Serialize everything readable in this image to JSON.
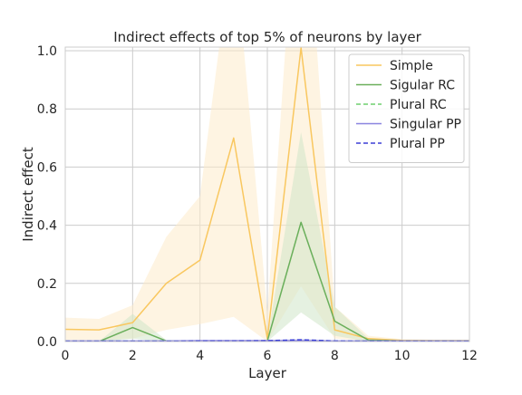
{
  "chart_data": {
    "type": "line",
    "title": "Indirect effects of top 5% of neurons by layer",
    "xlabel": "Layer",
    "ylabel": "Indirect effect",
    "xlim": [
      0,
      12
    ],
    "ylim": [
      0,
      1.0
    ],
    "xticks": [
      0,
      2,
      4,
      6,
      8,
      10,
      12
    ],
    "yticks": [
      0.0,
      0.2,
      0.4,
      0.6,
      0.8,
      1.0
    ],
    "xtick_labels": [
      "0",
      "2",
      "4",
      "6",
      "8",
      "10",
      "12"
    ],
    "ytick_labels": [
      "0.0",
      "0.2",
      "0.4",
      "0.6",
      "0.8",
      "1.0"
    ],
    "grid": true,
    "legend_position": "top-right",
    "x": [
      0,
      1,
      2,
      3,
      4,
      5,
      6,
      7,
      8,
      9,
      10,
      11,
      12
    ],
    "series": [
      {
        "name": "Simple",
        "color": "#f9c75f",
        "band_color": "#fdebcb",
        "dash": "solid",
        "values": [
          0.042,
          0.04,
          0.065,
          0.2,
          0.28,
          0.7,
          0.01,
          1.01,
          0.04,
          0.01,
          0.004,
          0.003,
          0.003
        ],
        "lower": [
          0.005,
          0.005,
          0.01,
          0.04,
          0.06,
          0.085,
          0.0,
          0.19,
          0.01,
          0.003,
          0.001,
          0.001,
          0.001
        ],
        "upper": [
          0.082,
          0.078,
          0.125,
          0.36,
          0.5,
          1.4,
          0.1,
          1.8,
          0.12,
          0.02,
          0.008,
          0.006,
          0.006
        ]
      },
      {
        "name": "Sigular RC",
        "color": "#6aaf5b",
        "band_color": "#cfe6c8",
        "dash": "solid",
        "values": [
          0.0,
          0.0,
          0.048,
          0.002,
          0.002,
          0.002,
          0.002,
          0.41,
          0.07,
          0.005,
          0.002,
          0.002,
          0.002
        ],
        "lower": [
          0.0,
          0.0,
          0.01,
          0.0,
          0.0,
          0.0,
          0.0,
          0.1,
          0.02,
          0.0,
          0.0,
          0.0,
          0.0
        ],
        "upper": [
          0.0,
          0.0,
          0.095,
          0.005,
          0.005,
          0.005,
          0.005,
          0.72,
          0.12,
          0.01,
          0.005,
          0.005,
          0.005
        ]
      },
      {
        "name": "Plural RC",
        "color": "#6fcf6f",
        "band_color": "#cfe6c8",
        "dash": "dashed",
        "values": [
          0.002,
          0.002,
          0.002,
          0.002,
          0.002,
          0.002,
          0.002,
          0.004,
          0.002,
          0.002,
          0.002,
          0.002,
          0.002
        ],
        "lower": [
          0.0,
          0.0,
          0.0,
          0.0,
          0.0,
          0.0,
          0.0,
          0.0,
          0.0,
          0.0,
          0.0,
          0.0,
          0.0
        ],
        "upper": [
          0.004,
          0.004,
          0.004,
          0.004,
          0.004,
          0.004,
          0.004,
          0.008,
          0.004,
          0.004,
          0.004,
          0.004,
          0.004
        ]
      },
      {
        "name": "Singular PP",
        "color": "#8a84e0",
        "band_color": "#d6d4f4",
        "dash": "solid",
        "values": [
          0.002,
          0.002,
          0.002,
          0.002,
          0.003,
          0.003,
          0.003,
          0.003,
          0.002,
          0.002,
          0.002,
          0.002,
          0.002
        ],
        "lower": [
          0.0,
          0.0,
          0.0,
          0.0,
          0.0,
          0.0,
          0.0,
          0.0,
          0.0,
          0.0,
          0.0,
          0.0,
          0.0
        ],
        "upper": [
          0.004,
          0.004,
          0.004,
          0.004,
          0.005,
          0.005,
          0.005,
          0.005,
          0.004,
          0.004,
          0.004,
          0.004,
          0.004
        ]
      },
      {
        "name": "Plural PP",
        "color": "#3b3fd6",
        "band_color": "#d6d4f4",
        "dash": "dashed",
        "values": [
          0.001,
          0.001,
          0.001,
          0.001,
          0.002,
          0.002,
          0.003,
          0.006,
          0.002,
          0.001,
          0.001,
          0.001,
          0.001
        ],
        "lower": [
          0.0,
          0.0,
          0.0,
          0.0,
          0.0,
          0.0,
          0.0,
          0.0,
          0.0,
          0.0,
          0.0,
          0.0,
          0.0
        ],
        "upper": [
          0.003,
          0.003,
          0.003,
          0.003,
          0.004,
          0.004,
          0.005,
          0.01,
          0.004,
          0.003,
          0.003,
          0.003,
          0.003
        ]
      }
    ]
  }
}
